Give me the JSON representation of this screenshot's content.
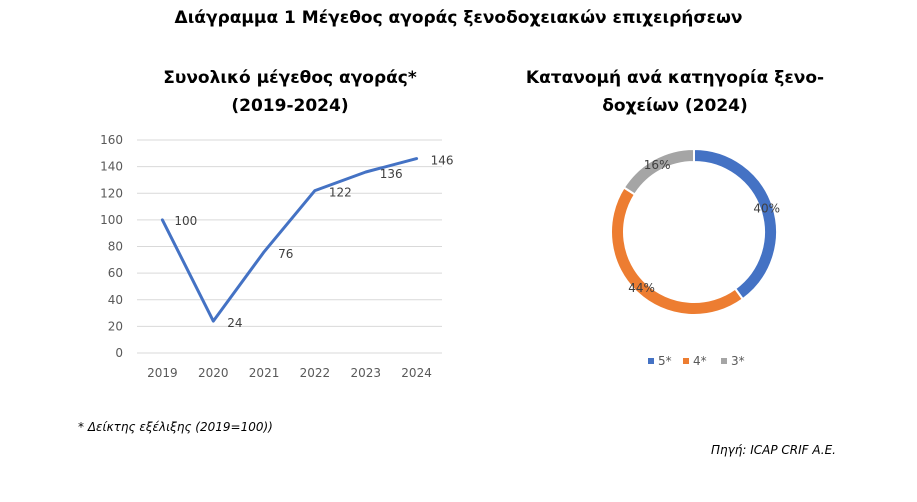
{
  "title": "Διάγραμμα 1 Μέγεθος αγοράς ξενοδοχειακών επιχειρήσεων",
  "chart_data": [
    {
      "type": "line",
      "title_lines": [
        "Συνολικό μέγεθος αγοράς*",
        "(2019-2024)"
      ],
      "categories": [
        "2019",
        "2020",
        "2021",
        "2022",
        "2023",
        "2024"
      ],
      "series": [
        {
          "values": [
            100,
            24,
            76,
            122,
            136,
            146
          ]
        }
      ],
      "data_labels": [
        "100",
        "24",
        "76",
        "122",
        "136",
        "146"
      ],
      "ylim": [
        0,
        160
      ],
      "yticks": [
        "0",
        "20",
        "40",
        "60",
        "80",
        "100",
        "120",
        "140",
        "160"
      ],
      "grid": true,
      "color": "#4472C4"
    },
    {
      "type": "pie",
      "style": "donut",
      "title_lines": [
        "Κατανομή ανά κατηγορία ξενο-",
        "δοχείων (2024)"
      ],
      "labels": [
        "5*",
        "4*",
        "3*"
      ],
      "values": [
        40,
        44,
        16
      ],
      "value_labels": [
        "40%",
        "44%",
        "16%"
      ],
      "colors": [
        "#4472C4",
        "#ED7D31",
        "#A5A5A5"
      ],
      "legend": "bottom"
    }
  ],
  "footnote": "* Δείκτης εξέλιξης (2019=100))",
  "source": "Πηγή:  ICAP CRIF A.E."
}
